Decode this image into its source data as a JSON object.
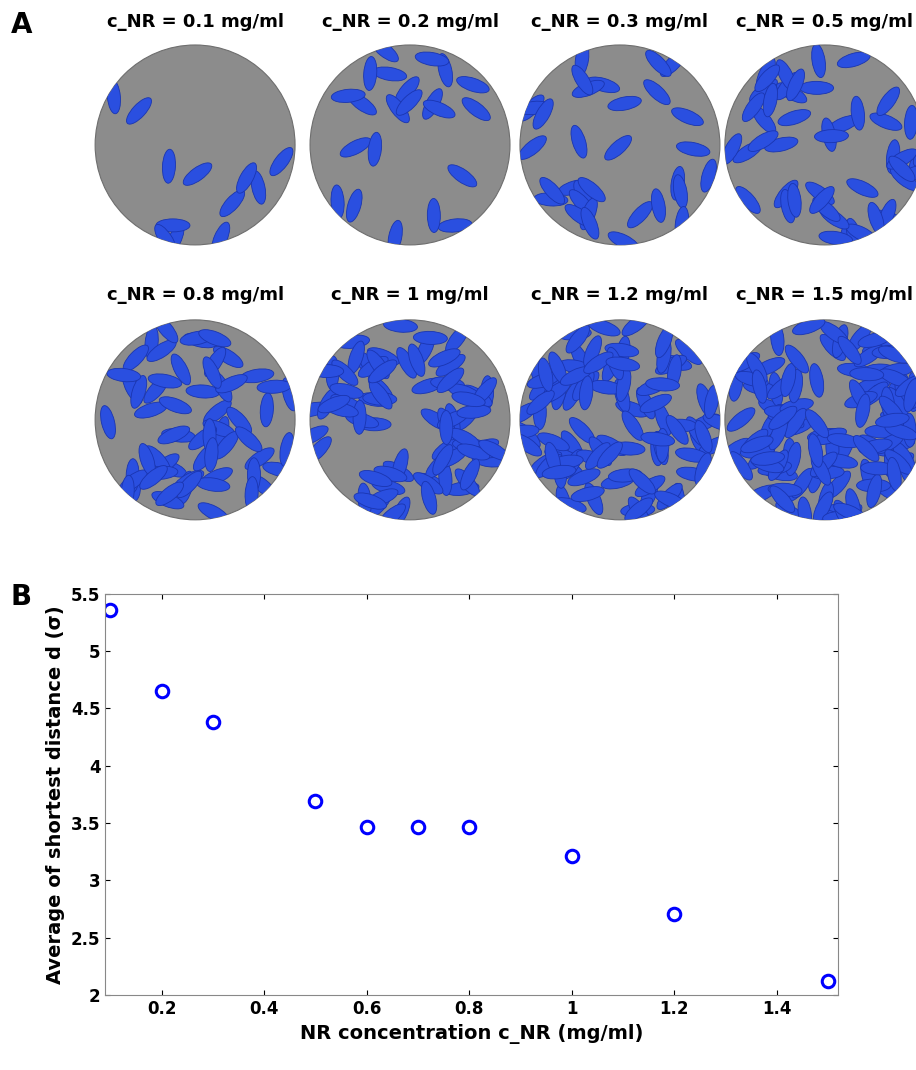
{
  "panel_a": {
    "label": "A",
    "captions": [
      "c_NR = 0.1 mg/ml",
      "c_NR = 0.2 mg/ml",
      "c_NR = 0.3 mg/ml",
      "c_NR = 0.5 mg/ml",
      "c_NR = 0.8 mg/ml",
      "c_NR = 1 mg/ml",
      "c_NR = 1.2 mg/ml",
      "c_NR = 1.5 mg/ml"
    ]
  },
  "chart_data": {
    "type": "scatter",
    "panel_label": "B",
    "x_label": "NR concentration c_NR (mg/ml)",
    "y_label": "Average of shortest distance d (σ)",
    "x": [
      0.1,
      0.2,
      0.3,
      0.5,
      0.6,
      0.7,
      0.8,
      1.0,
      1.2,
      1.5
    ],
    "values": [
      5.36,
      4.65,
      4.38,
      3.69,
      3.47,
      3.47,
      3.47,
      3.21,
      2.71,
      2.12
    ],
    "color": "#0000ff",
    "marker": "o",
    "xlim": [
      0.09,
      1.52
    ],
    "ylim": [
      2,
      5.5
    ],
    "xticks": [
      0.2,
      0.4,
      0.6,
      0.8,
      1,
      1.2,
      1.4
    ],
    "yticks": [
      2,
      2.5,
      3,
      3.5,
      4,
      4.5,
      5,
      5.5
    ],
    "grid": false
  }
}
